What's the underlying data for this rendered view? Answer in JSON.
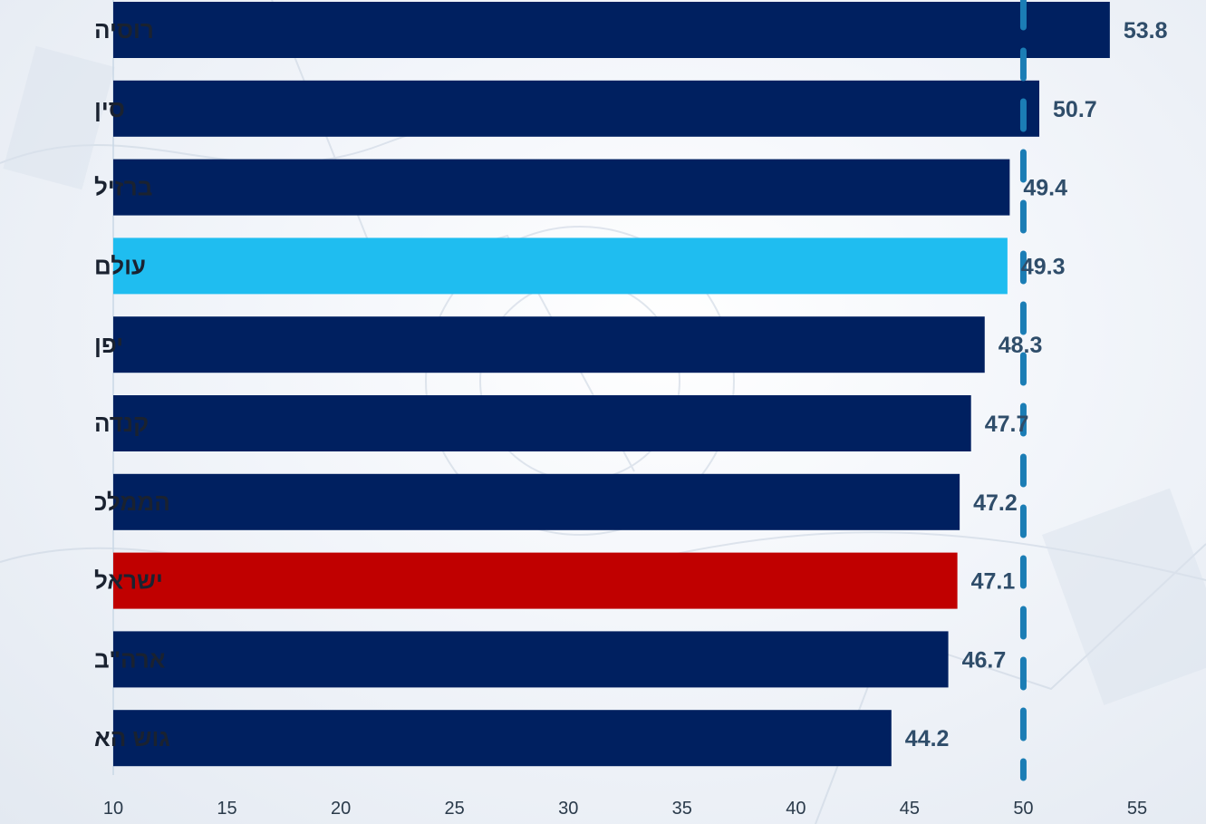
{
  "chart_data": {
    "type": "bar",
    "orientation": "horizontal",
    "categories": [
      "רוסיה",
      "סין",
      "ברזיל",
      "עולם",
      "יפן",
      "קנדה",
      "הממלכ",
      "ישראל",
      "ארה\"ב",
      "גוש הא"
    ],
    "values": [
      53.8,
      50.7,
      49.4,
      49.3,
      48.3,
      47.7,
      47.2,
      47.1,
      46.7,
      44.2
    ],
    "value_labels": [
      "53.8",
      "50.7",
      "49.4",
      "49.3",
      "48.3",
      "47.7",
      "47.2",
      "47.1",
      "46.7",
      "44.2"
    ],
    "bar_colors": [
      "#002060",
      "#002060",
      "#002060",
      "#1fbdf0",
      "#002060",
      "#002060",
      "#002060",
      "#c00000",
      "#002060",
      "#002060"
    ],
    "x_ticks": [
      10,
      15,
      20,
      25,
      30,
      35,
      40,
      45,
      50,
      55
    ],
    "x_tick_labels": [
      "10",
      "15",
      "20",
      "25",
      "30",
      "35",
      "40",
      "45",
      "50",
      "55"
    ],
    "xlim": [
      10,
      55
    ],
    "reference_line": {
      "value": 50,
      "style": "dashed",
      "color": "#1b7db5"
    },
    "title": "",
    "xlabel": "",
    "ylabel": "",
    "grid": false,
    "legend": "none"
  }
}
